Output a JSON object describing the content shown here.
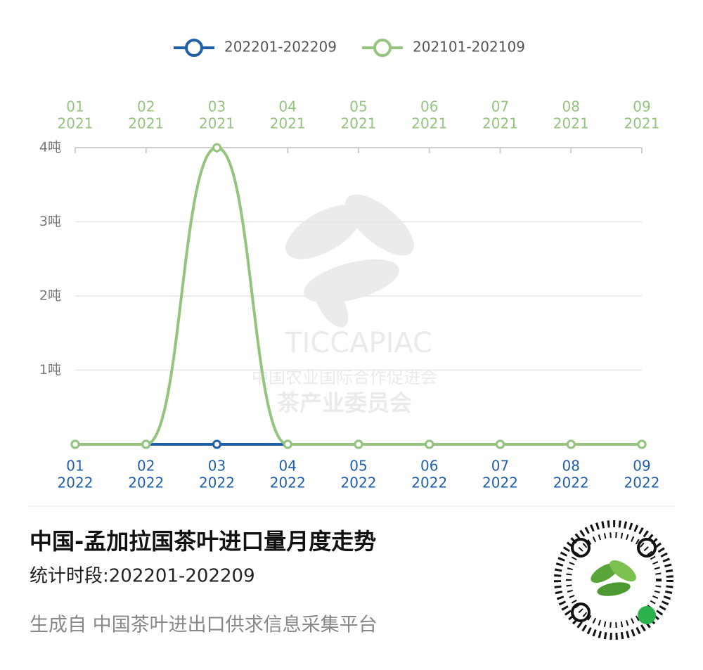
{
  "chart_data": {
    "type": "line",
    "legend": "top",
    "grid": true,
    "x_top": {
      "months": [
        "01",
        "02",
        "03",
        "04",
        "05",
        "06",
        "07",
        "08",
        "09"
      ],
      "years": [
        "2021",
        "2021",
        "2021",
        "2021",
        "2021",
        "2021",
        "2021",
        "2021",
        "2021"
      ]
    },
    "x_bottom": {
      "months": [
        "01",
        "02",
        "03",
        "04",
        "05",
        "06",
        "07",
        "08",
        "09"
      ],
      "years": [
        "2022",
        "2022",
        "2022",
        "2022",
        "2022",
        "2022",
        "2022",
        "2022",
        "2022"
      ]
    },
    "ylim": [
      0,
      4
    ],
    "yticks": [
      {
        "value": 1,
        "label": "1吨"
      },
      {
        "value": 2,
        "label": "2吨"
      },
      {
        "value": 3,
        "label": "3吨"
      },
      {
        "value": 4,
        "label": "4吨"
      }
    ],
    "series": [
      {
        "name": "202201-202209",
        "color": "#1f5fa8",
        "values": [
          0,
          0,
          0,
          0,
          0,
          0,
          0,
          0,
          0
        ]
      },
      {
        "name": "202101-202109",
        "color": "#94c47d",
        "values": [
          0,
          0,
          4,
          0,
          0,
          0,
          0,
          0,
          0
        ]
      }
    ],
    "title": "中国-孟加拉国茶叶进口量月度走势",
    "subtitle": "统计时段:202201-202209",
    "source": "生成自 中国茶叶进出口供求信息采集平台",
    "watermark": [
      "TICCAPIAC",
      "中国农业国际合作促进会",
      "茶产业委员会"
    ]
  }
}
